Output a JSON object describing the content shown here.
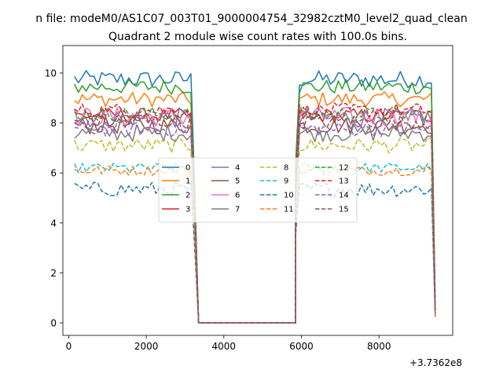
{
  "figure": {
    "suptitle": "n file: modeM0/AS1C07_003T01_9000004754_32982cztM0_level2_quad_clean",
    "title": "Quadrant 2 module wise count rates with 100.0s bins.",
    "x_offset_label": "+3.7362e8"
  },
  "chart_data": {
    "type": "line",
    "title": "Quadrant 2 module wise count rates with 100.0s bins.",
    "xlabel": "",
    "ylabel": "",
    "x_offset": "+3.7362e8",
    "xlim": [
      -150,
      9900
    ],
    "ylim": [
      -0.5,
      11.1
    ],
    "xticks": [
      0,
      2000,
      4000,
      6000,
      8000
    ],
    "yticks": [
      0,
      2,
      4,
      6,
      8,
      10
    ],
    "xtick_labels": [
      "0",
      "2000",
      "4000",
      "6000",
      "8000"
    ],
    "ytick_labels": [
      "0",
      "2",
      "4",
      "6",
      "8",
      "10"
    ],
    "grid": false,
    "legend": {
      "placement": "center",
      "ncol": 4
    },
    "bin_width_s": 100,
    "segments": [
      {
        "x_start": 150,
        "x_end": 3150
      },
      {
        "x_start": 5950,
        "x_end": 9350
      }
    ],
    "gap": {
      "x": [
        3350,
        5850
      ],
      "value": 0
    },
    "series": [
      {
        "name": "0",
        "color": "#1f77b4",
        "dash": "solid",
        "level": 9.75,
        "amp": 0.35,
        "end": 0.7
      },
      {
        "name": "1",
        "color": "#ff7f0e",
        "dash": "solid",
        "level": 8.95,
        "amp": 0.3,
        "end": 0.6
      },
      {
        "name": "2",
        "color": "#2ca02c",
        "dash": "solid",
        "level": 9.45,
        "amp": 0.3,
        "end": 0.6
      },
      {
        "name": "3",
        "color": "#d62728",
        "dash": "solid",
        "level": 8.3,
        "amp": 0.3,
        "end": 0.5
      },
      {
        "name": "4",
        "color": "#9467bd",
        "dash": "solid",
        "level": 8.2,
        "amp": 0.4,
        "end": 0.5
      },
      {
        "name": "5",
        "color": "#8c564b",
        "dash": "solid",
        "level": 7.9,
        "amp": 0.35,
        "end": 0.4
      },
      {
        "name": "6",
        "color": "#e377c2",
        "dash": "solid",
        "level": 8.25,
        "amp": 0.4,
        "end": 0.4
      },
      {
        "name": "7",
        "color": "#7f7f7f",
        "dash": "solid",
        "level": 7.6,
        "amp": 0.35,
        "end": 0.4
      },
      {
        "name": "8",
        "color": "#bcbd22",
        "dash": "dashed",
        "level": 7.1,
        "amp": 0.3,
        "end": 0.35
      },
      {
        "name": "9",
        "color": "#17becf",
        "dash": "dashed",
        "level": 6.2,
        "amp": 0.2,
        "end": 0.3
      },
      {
        "name": "10",
        "color": "#1f77b4",
        "dash": "dashed",
        "level": 5.35,
        "amp": 0.3,
        "end": 0.25
      },
      {
        "name": "11",
        "color": "#ff7f0e",
        "dash": "dashed",
        "level": 6.1,
        "amp": 0.2,
        "end": 0.3
      },
      {
        "name": "12",
        "color": "#2ca02c",
        "dash": "dashed",
        "level": 8.35,
        "amp": 0.3,
        "end": 0.4
      },
      {
        "name": "13",
        "color": "#d62728",
        "dash": "dashed",
        "level": 8.5,
        "amp": 0.3,
        "end": 0.4
      },
      {
        "name": "14",
        "color": "#9467bd",
        "dash": "dashed",
        "level": 7.75,
        "amp": 0.3,
        "end": 0.35
      },
      {
        "name": "15",
        "color": "#8c564b",
        "dash": "dashed",
        "level": 8.05,
        "amp": 0.3,
        "end": 0.35
      }
    ]
  }
}
